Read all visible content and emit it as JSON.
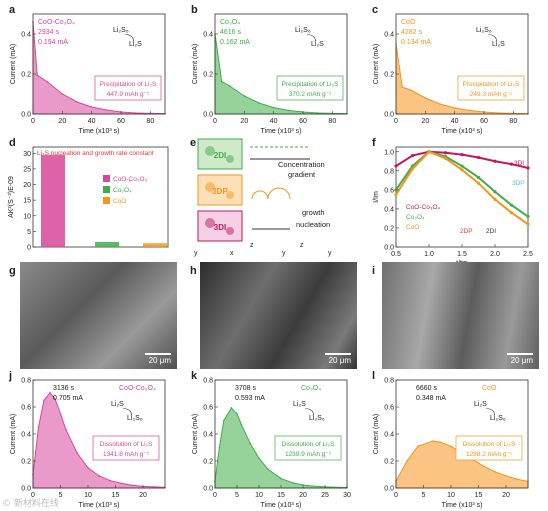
{
  "colors": {
    "pink": "#d9479a",
    "green": "#3fae49",
    "orange": "#f7941d",
    "magenta": "#c2185b",
    "cyan": "#5bc0de",
    "red": "#e53935"
  },
  "panels": {
    "a": {
      "letter": "a",
      "sample": "CoO-Co3O4",
      "sample_sub": "CoO-Co₃O₄",
      "time": "2934 s",
      "current": "0.194 mA",
      "species1": "Li2S6",
      "species2": "Li2S",
      "precip": "Precipitation of Li2S",
      "capacity": "447.9 mAh g⁻¹",
      "color": "#d9479a"
    },
    "b": {
      "letter": "b",
      "sample": "Co3O4",
      "time": "4616 s",
      "current": "0.162 mA",
      "species1": "Li2S6",
      "species2": "Li2S",
      "precip": "Precipitation of Li2S",
      "capacity": "370.2 mAh g⁻¹",
      "color": "#3fae49"
    },
    "c": {
      "letter": "c",
      "sample": "CoO",
      "time": "4282 s",
      "current": "0.134 mA",
      "species1": "Li2S6",
      "species2": "Li2S",
      "precip": "Precipitation of Li2S",
      "capacity": "249.3 mAh g⁻¹",
      "color": "#f7941d"
    },
    "top_axes": {
      "xlabel": "Time (x10³ s)",
      "ylabel": "Current (mA)",
      "xticks": [
        "0",
        "20",
        "40",
        "60",
        "80"
      ],
      "yticks": [
        "0.0",
        "0.2",
        "0.4"
      ]
    },
    "d": {
      "letter": "d",
      "title": "Li2S nucleation and growth rate constant",
      "ylabel": "AK²(S⁻²)E-09",
      "yticks": [
        "0",
        "5",
        "10",
        "15",
        "20",
        "25",
        "30"
      ],
      "legend": [
        "CoO-Co3O4",
        "Co3O4",
        "CoO"
      ]
    },
    "e": {
      "letter": "e",
      "labels": [
        "2DI",
        "3DP",
        "3DI"
      ],
      "conc": "Concentration",
      "gradient": "gradient",
      "growth": "growth",
      "nucleation": "nucleation",
      "axes": [
        "y",
        "x",
        "z",
        "y",
        "z",
        "y"
      ]
    },
    "f": {
      "letter": "f",
      "ylabel": "I/Im",
      "xlabel": "t/tm",
      "xticks": [
        "0.5",
        "1.0",
        "1.5",
        "2.0",
        "2.5"
      ],
      "yticks": [
        "0.0",
        "0.2",
        "0.4",
        "0.6",
        "0.8",
        "1.0"
      ],
      "legend": [
        "CoO-Co3O4",
        "Co3O4",
        "CoO"
      ],
      "model_labels": [
        "3DI",
        "3DP",
        "2DP",
        "2DI"
      ]
    },
    "sem": [
      {
        "letter": "g",
        "scale": "20 μm"
      },
      {
        "letter": "h",
        "scale": "20 μm"
      },
      {
        "letter": "i",
        "scale": "20 μm"
      }
    ],
    "j": {
      "letter": "j",
      "sample": "CoO-Co3O4",
      "time": "3136 s",
      "current": "0.705 mA",
      "species1": "Li2S",
      "species2": "Li2S6",
      "diss": "Dissolution of Li2S",
      "capacity": "1341.8 mAh g⁻¹",
      "color": "#d9479a"
    },
    "k": {
      "letter": "k",
      "sample": "Co3O4",
      "time": "3708 s",
      "current": "0.593 mA",
      "species1": "Li2S",
      "species2": "Li2S6",
      "diss": "Dissolution of Li2S",
      "capacity": "1239.9 mAh g⁻¹",
      "color": "#3fae49"
    },
    "l": {
      "letter": "l",
      "sample": "CoO",
      "time": "6660 s",
      "current": "0.348 mA",
      "species1": "Li2S",
      "species2": "Li2S6",
      "diss": "Dissolution of Li2S",
      "capacity": "1288.2 mAh g⁻¹",
      "color": "#f7941d"
    },
    "bottom_axes": {
      "xlabel": "Time (x10³ s)",
      "ylabel": "Current (mA)",
      "yticks": [
        "0.0",
        "0.2",
        "0.4",
        "0.6",
        "0.8"
      ],
      "xticks_j": [
        "0",
        "5",
        "10",
        "15",
        "20"
      ],
      "xticks_k": [
        "0",
        "5",
        "10",
        "15",
        "20",
        "25",
        "30"
      ],
      "xticks_l": [
        "0",
        "5",
        "10",
        "15",
        "20"
      ]
    },
    "watermark": "© 新材料在线"
  },
  "chart_data": [
    {
      "type": "area",
      "panel": "a",
      "xlabel": "Time (x10³ s)",
      "ylabel": "Current (mA)",
      "xlim": [
        0,
        90
      ],
      "ylim": [
        0,
        0.5
      ],
      "x": [
        0,
        2.9,
        10,
        20,
        30,
        40,
        50,
        60,
        70,
        80,
        90
      ],
      "y": [
        0.46,
        0.194,
        0.16,
        0.1,
        0.06,
        0.035,
        0.02,
        0.01,
        0.005,
        0.003,
        0.002
      ]
    },
    {
      "type": "area",
      "panel": "b",
      "xlabel": "Time (x10³ s)",
      "ylabel": "Current (mA)",
      "xlim": [
        0,
        90
      ],
      "ylim": [
        0,
        0.5
      ],
      "x": [
        0,
        4.6,
        10,
        20,
        30,
        40,
        50,
        60,
        70,
        80,
        90
      ],
      "y": [
        0.4,
        0.162,
        0.14,
        0.09,
        0.055,
        0.032,
        0.018,
        0.01,
        0.005,
        0.003,
        0.002
      ]
    },
    {
      "type": "area",
      "panel": "c",
      "xlabel": "Time (x10³ s)",
      "ylabel": "Current (mA)",
      "xlim": [
        0,
        90
      ],
      "ylim": [
        0,
        0.5
      ],
      "x": [
        0,
        4.3,
        10,
        20,
        30,
        40,
        50,
        60,
        70,
        80,
        90
      ],
      "y": [
        0.35,
        0.134,
        0.12,
        0.08,
        0.05,
        0.03,
        0.018,
        0.01,
        0.005,
        0.003,
        0.002
      ]
    },
    {
      "type": "bar",
      "panel": "d",
      "categories": [
        "CoO-Co3O4",
        "Co3O4",
        "CoO"
      ],
      "values": [
        29.5,
        1.6,
        1.2
      ],
      "ylim": [
        0,
        32
      ],
      "ylabel": "AK²(S⁻²)E-09"
    },
    {
      "type": "line",
      "panel": "f",
      "xlabel": "t/tm",
      "ylabel": "I/Im",
      "xlim": [
        0.5,
        2.5
      ],
      "ylim": [
        0,
        1.05
      ],
      "series": [
        {
          "name": "CoO-Co3O4",
          "x": [
            0.5,
            0.75,
            1.0,
            1.25,
            1.5,
            1.75,
            2.0,
            2.25,
            2.5
          ],
          "y": [
            0.85,
            0.96,
            1.0,
            0.99,
            0.97,
            0.94,
            0.9,
            0.87,
            0.83
          ]
        },
        {
          "name": "Co3O4",
          "x": [
            0.5,
            0.75,
            1.0,
            1.25,
            1.5,
            1.75,
            2.0,
            2.25,
            2.5
          ],
          "y": [
            0.6,
            0.85,
            1.0,
            0.95,
            0.85,
            0.73,
            0.58,
            0.44,
            0.32
          ]
        },
        {
          "name": "CoO",
          "x": [
            0.5,
            0.75,
            1.0,
            1.25,
            1.5,
            1.75,
            2.0,
            2.25,
            2.5
          ],
          "y": [
            0.55,
            0.82,
            1.0,
            0.93,
            0.81,
            0.67,
            0.5,
            0.36,
            0.24
          ]
        }
      ]
    },
    {
      "type": "area",
      "panel": "j",
      "xlabel": "Time (x10³ s)",
      "ylabel": "Current (mA)",
      "xlim": [
        0,
        24
      ],
      "ylim": [
        0,
        0.8
      ],
      "x": [
        0,
        1,
        2,
        3.1,
        4,
        5,
        6,
        8,
        10,
        12,
        14,
        16,
        18,
        20,
        22,
        24
      ],
      "y": [
        0.1,
        0.45,
        0.65,
        0.705,
        0.66,
        0.55,
        0.43,
        0.26,
        0.15,
        0.09,
        0.055,
        0.035,
        0.02,
        0.012,
        0.008,
        0.005
      ]
    },
    {
      "type": "area",
      "panel": "k",
      "xlabel": "Time (x10³ s)",
      "ylabel": "Current (mA)",
      "xlim": [
        0,
        30
      ],
      "ylim": [
        0,
        0.8
      ],
      "x": [
        0,
        1,
        2,
        3.7,
        5,
        6,
        8,
        10,
        12,
        15,
        18,
        21,
        24,
        27,
        30
      ],
      "y": [
        0.05,
        0.3,
        0.5,
        0.593,
        0.55,
        0.47,
        0.33,
        0.22,
        0.14,
        0.07,
        0.035,
        0.018,
        0.01,
        0.006,
        0.004
      ]
    },
    {
      "type": "area",
      "panel": "l",
      "xlabel": "Time (x10³ s)",
      "ylabel": "Current (mA)",
      "xlim": [
        0,
        24
      ],
      "ylim": [
        0,
        0.8
      ],
      "x": [
        0,
        2,
        4,
        6.7,
        8,
        10,
        12,
        14,
        16,
        18,
        20,
        22,
        24
      ],
      "y": [
        0.05,
        0.2,
        0.31,
        0.348,
        0.34,
        0.31,
        0.26,
        0.21,
        0.16,
        0.12,
        0.09,
        0.065,
        0.05
      ]
    }
  ]
}
